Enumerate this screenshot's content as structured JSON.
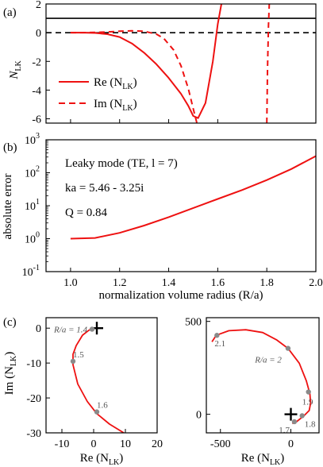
{
  "figure": {
    "panel_labels": [
      "(a)",
      "(b)",
      "(c)"
    ]
  },
  "chart_data": [
    {
      "panel": "(a)",
      "type": "line",
      "ylabel_main": "N",
      "ylabel_sub": "LK",
      "xlim": [
        0.9,
        2.0
      ],
      "ylim": [
        -6.3,
        2.0
      ],
      "yticks": [
        2,
        0,
        -2,
        -4,
        -6
      ],
      "x_ticklabels_shown": false,
      "reference_lines": [
        {
          "y": 1,
          "style": "solid"
        },
        {
          "y": 0,
          "style": "dashed"
        }
      ],
      "series": [
        {
          "name": "Re (N_LK)",
          "style": "solid",
          "color": "#ee1111",
          "x": [
            1.0,
            1.05,
            1.1,
            1.15,
            1.2,
            1.25,
            1.3,
            1.35,
            1.4,
            1.45,
            1.48,
            1.5,
            1.52,
            1.55,
            1.58,
            1.6,
            1.615
          ],
          "y": [
            0.0,
            0.0,
            -0.02,
            -0.1,
            -0.3,
            -0.75,
            -1.4,
            -2.2,
            -3.15,
            -4.25,
            -5.1,
            -5.8,
            -5.95,
            -4.9,
            -2.0,
            0.6,
            2.0
          ]
        },
        {
          "name": "Im (N_LK)",
          "style": "dashed",
          "color": "#ee1111",
          "x": [
            1.0,
            1.05,
            1.1,
            1.15,
            1.2,
            1.25,
            1.3,
            1.35,
            1.38,
            1.42,
            1.45,
            1.48,
            1.5,
            1.515
          ],
          "y": [
            0.0,
            0.0,
            0.02,
            0.05,
            0.1,
            0.13,
            0.1,
            -0.1,
            -0.4,
            -1.2,
            -2.3,
            -3.9,
            -5.3,
            -6.3
          ]
        },
        {
          "name": "",
          "style": "dashed",
          "color": "#ee1111",
          "x": [
            1.8,
            1.803,
            1.807,
            1.81
          ],
          "y": [
            -6.3,
            -2.5,
            0.5,
            2.0
          ]
        }
      ],
      "legend": {
        "position": "center-left",
        "entries": [
          {
            "main": "Re (N",
            "sub": "LK",
            "tail": ")",
            "style": "solid"
          },
          {
            "main": "Im (N",
            "sub": "LK",
            "tail": ")",
            "style": "dashed"
          }
        ]
      }
    },
    {
      "panel": "(b)",
      "type": "line",
      "ylabel": "absolute error",
      "xlabel": "normalization volume radius (R/a)",
      "yscale": "log",
      "xlim": [
        0.9,
        2.0
      ],
      "ylim": [
        0.1,
        1000
      ],
      "xticks": [
        "1.0",
        "1.2",
        "1.4",
        "1.6",
        "1.8",
        "2.0"
      ],
      "ytick_bases": [
        "10",
        "10",
        "10",
        "10",
        "10"
      ],
      "ytick_exponents": [
        "-1",
        "0",
        "1",
        "2",
        "3"
      ],
      "series": [
        {
          "name": "",
          "color": "#ee1111",
          "x": [
            1.0,
            1.1,
            1.2,
            1.3,
            1.4,
            1.5,
            1.6,
            1.7,
            1.8,
            1.9,
            2.0
          ],
          "y": [
            1.0,
            1.05,
            1.5,
            2.5,
            4.5,
            8.5,
            16,
            30,
            60,
            130,
            320
          ]
        }
      ],
      "annotations": [
        "Leaky mode (TE, l = 7)",
        "ka = 5.46 - 3.25i",
        "Q = 0.84"
      ]
    },
    {
      "panel": "(c) left",
      "type": "line",
      "xlabel_main": "Re (N",
      "xlabel_sub": "LK",
      "xlabel_tail": ")",
      "ylabel_main": "Im (N",
      "ylabel_sub": "LK",
      "ylabel_tail": ")",
      "xlim": [
        -15,
        20
      ],
      "ylim": [
        -30,
        3
      ],
      "xticks": [
        "-10",
        "0",
        "10",
        "20"
      ],
      "yticks": [
        "0",
        "-10",
        "-20",
        "-30"
      ],
      "series": [
        {
          "name": "",
          "color": "#ee1111",
          "x": [
            0,
            -1.5,
            -3.5,
            -5.5,
            -6.5,
            -6.5,
            -5.0,
            -2.0,
            1.0,
            5.0,
            9.5
          ],
          "y": [
            0,
            -0.6,
            -2.0,
            -5.0,
            -7.5,
            -10.5,
            -16.0,
            -21.0,
            -24.5,
            -27.5,
            -30
          ]
        }
      ],
      "markers": [
        {
          "label": "R/a = 1.4",
          "x": -0.5,
          "y": -0.3
        },
        {
          "label": "1.5",
          "x": -6.5,
          "y": -9.5
        },
        {
          "label": "1.6",
          "x": 1.0,
          "y": -24.0
        }
      ],
      "cross_marker": {
        "x": 1,
        "y": 0
      }
    },
    {
      "panel": "(c) right",
      "type": "line",
      "xlabel_main": "Re (N",
      "xlabel_sub": "LK",
      "xlabel_tail": ")",
      "xlim": [
        -600,
        200
      ],
      "ylim": [
        -100,
        520
      ],
      "xticks": [
        "-500",
        "0"
      ],
      "yticks": [
        "500",
        "0"
      ],
      "series": [
        {
          "name": "",
          "color": "#ee1111",
          "x": [
            -560,
            -530,
            -440,
            -320,
            -200,
            -100,
            -20,
            60,
            110,
            135,
            140,
            130,
            90,
            40,
            10
          ],
          "y": [
            390,
            425,
            450,
            455,
            440,
            400,
            355,
            275,
            180,
            110,
            60,
            20,
            -10,
            -40,
            -50
          ]
        }
      ],
      "markers": [
        {
          "label": "2.1",
          "x": -525,
          "y": 425
        },
        {
          "label": "R/a = 2",
          "x": -20,
          "y": 355
        },
        {
          "label": "1.9",
          "x": 125,
          "y": 120
        },
        {
          "label": "1.8",
          "x": 80,
          "y": -8
        },
        {
          "label": "1.7",
          "x": 25,
          "y": -40
        }
      ],
      "cross_marker": {
        "x": 0,
        "y": 0
      }
    }
  ]
}
